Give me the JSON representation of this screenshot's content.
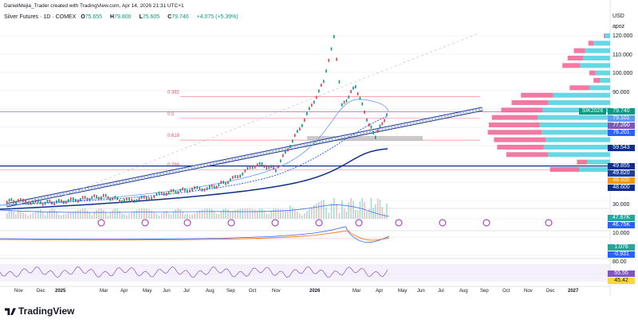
{
  "header": {
    "credit": "DanielMejia_Trader created with TradingView.com, Apr 14, 2026 21:31 UTC+1",
    "symbol": "Silver Futures · 1D · COMEX",
    "o_label": "O",
    "o": "75.655",
    "h_label": "H",
    "h": "79.800",
    "l_label": "L",
    "l": "75.605",
    "c_label": "C",
    "c": "79.740",
    "change": "+4.075 (+5.39%)"
  },
  "axis": {
    "currency": "USD",
    "mode": "apoz",
    "price_ticks": [
      "120.000",
      "110.000",
      "100.000",
      "90.000"
    ],
    "volume_tick": "30.000",
    "macd_tick": "10.000",
    "rsi_tick": "80.00"
  },
  "price_tags": [
    {
      "text": "SIK2026",
      "color": "#089981"
    },
    {
      "text": "79.740",
      "color": "#089981"
    },
    {
      "text": "79.101",
      "color": "#5b9cf6"
    },
    {
      "text": "77.260",
      "color": "#7e57c2"
    },
    {
      "text": "76.201",
      "color": "#2962ff"
    },
    {
      "text": "59.543",
      "color": "#0d2f8c"
    },
    {
      "text": "49.855",
      "color": "#0d2f8c"
    },
    {
      "text": "49.820",
      "color": "#1e3f9c"
    },
    {
      "text": "48.600",
      "color": "#ff9800"
    },
    {
      "text": "48.600",
      "color": "#0d2f8c"
    },
    {
      "text": "47.67K",
      "color": "#26a69a"
    },
    {
      "text": "46.75K",
      "color": "#2962ff"
    },
    {
      "text": "1.076",
      "color": "#26a69a"
    },
    {
      "text": "-0.931",
      "color": "#2962ff"
    },
    {
      "text": "55.55",
      "color": "#7e57c2"
    },
    {
      "text": "45.42",
      "color": "#fdd835"
    }
  ],
  "fib": [
    {
      "label": "0.382",
      "price": 87.2
    },
    {
      "label": "0.5",
      "price": 75.5
    },
    {
      "label": "0.618",
      "price": 63.8
    },
    {
      "label": "0.786",
      "price": 47.9
    }
  ],
  "time_labels": [
    "Nov",
    "Dec",
    "2025",
    "Mar",
    "Apr",
    "May",
    "Jun",
    "Jul",
    "Aug",
    "Sep",
    "Oct",
    "Nov",
    "2026",
    "Mar",
    "Apr",
    "May",
    "Jun",
    "Jul",
    "Aug",
    "Sep",
    "Oct",
    "Nov",
    "Dec",
    "2027"
  ],
  "brand": "TradingView",
  "chart_data": {
    "type": "line",
    "ylim": [
      28,
      124
    ],
    "x": [
      "2024-10",
      "2024-11",
      "2024-12",
      "2025-01",
      "2025-02",
      "2025-03",
      "2025-04",
      "2025-05",
      "2025-06",
      "2025-07",
      "2025-08",
      "2025-09",
      "2025-10",
      "2025-11",
      "2025-12",
      "2026-01",
      "2026-01-29",
      "2026-02",
      "2026-02-20",
      "2026-03",
      "2026-03-20",
      "2026-04-14"
    ],
    "y": [
      31,
      31,
      30,
      30.5,
      32,
      33.5,
      31,
      32.5,
      35.5,
      37,
      38,
      42,
      51,
      48,
      70,
      95,
      120,
      82,
      93,
      72,
      66,
      79.74
    ],
    "volume_profile": {
      "prices": [
        120,
        116,
        112,
        108,
        104,
        100,
        96,
        92,
        88,
        84,
        80,
        76,
        72,
        68,
        64,
        60,
        56,
        52,
        48
      ],
      "up": [
        5,
        16,
        24,
        26,
        29,
        14,
        10,
        20,
        55,
        60,
        65,
        70,
        68,
        66,
        62,
        64,
        60,
        22,
        30
      ],
      "down": [
        1,
        5,
        11,
        15,
        17,
        6,
        6,
        19,
        31,
        35,
        40,
        44,
        49,
        52,
        50,
        45,
        40,
        10,
        28
      ]
    }
  }
}
